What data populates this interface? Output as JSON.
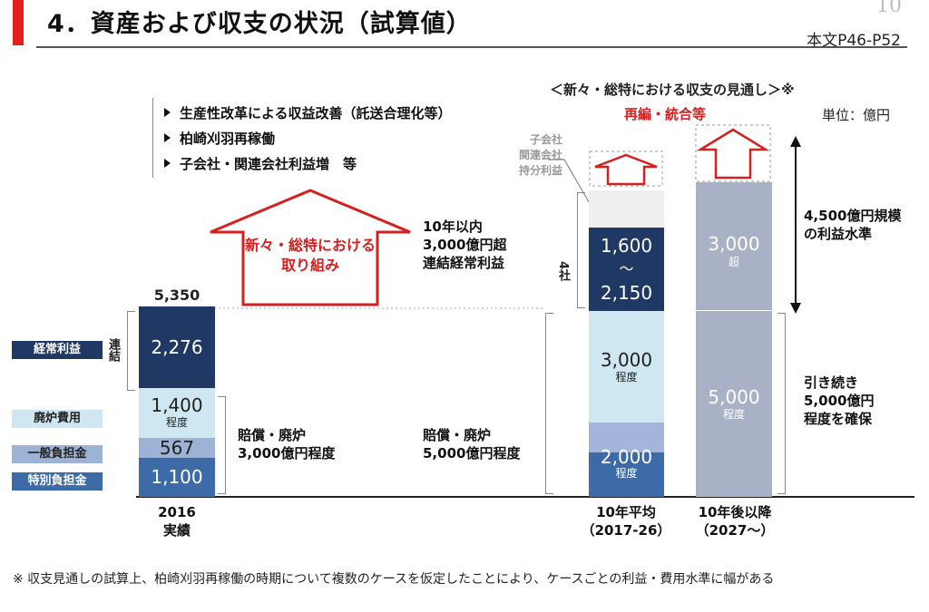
{
  "header": {
    "title": "4．資産および収支の状況（試算値）",
    "page_number": "10",
    "page_ref": "本文P46-P52"
  },
  "measures": {
    "items": [
      "生産性改革による収益改善（託送合理化等）",
      "柏崎刈羽再稼働",
      "子会社・関連会社利益増　等"
    ],
    "arrow_label_l1": "新々・総特における",
    "arrow_label_l2": "取り組み"
  },
  "outlook": {
    "heading": "＜新々・総特における収支の見通し＞※",
    "reorg_label": "再編・統合等",
    "unit": "単位：億円",
    "subsidiary_l1": "子会社",
    "subsidiary_l2": "関連会社",
    "subsidiary_l3": "持分利益"
  },
  "legend": {
    "ordinary_profit": "経常利益",
    "decommission": "廃炉費用",
    "general_burden": "一般負担金",
    "special_burden": "特別負担金",
    "consolidated": "連結",
    "four_companies": "4社"
  },
  "chart_data": {
    "type": "bar",
    "stacked": true,
    "unit": "億円",
    "categories": [
      "2016 実績",
      "10年平均（2017-26）",
      "10年後以降（2027～）"
    ],
    "bar_2016": {
      "total_label": "5,350",
      "segments": [
        {
          "name": "特別負担金",
          "value": 1100,
          "label": "1,100",
          "color": "#3d6ba8"
        },
        {
          "name": "一般負担金",
          "value": 567,
          "label": "567",
          "color": "#9db3d6"
        },
        {
          "name": "廃炉費用",
          "value": 1400,
          "label": "1,400",
          "sub": "程度",
          "color": "#cfe7f0"
        },
        {
          "name": "経常利益",
          "value": 2276,
          "label": "2,276",
          "color": "#1f3864"
        }
      ]
    },
    "bar_avg": {
      "segments": [
        {
          "name": "特別・一般負担金",
          "value": 2000,
          "label": "2,000",
          "sub": "程度",
          "color_top": "#a3b5da",
          "color_bottom": "#3d6ba8"
        },
        {
          "name": "廃炉費用",
          "value": 3000,
          "label": "3,000",
          "sub": "程度",
          "color": "#cfe7f0"
        },
        {
          "name": "経常利益(4社)",
          "value_low": 1600,
          "value_high": 2150,
          "label_top": "1,600",
          "label_mid": "～",
          "label_bottom": "2,150",
          "color": "#1f3864"
        },
        {
          "name": "子会社・関連会社持分利益",
          "color": "#efefef"
        }
      ]
    },
    "bar_future": {
      "color": "#a9b1c6",
      "segments": [
        {
          "name": "負担金・廃炉費用",
          "value": 5000,
          "label": "5,000",
          "sub": "程度"
        },
        {
          "name": "利益",
          "value": 3000,
          "label": "3,000",
          "sub": "超"
        }
      ]
    },
    "annotations": {
      "profit_2016_l1": "10年以内",
      "profit_2016_l2": "3,000億円超",
      "profit_2016_l3": "連結経常利益",
      "burden_2016_l1": "賠償・廃炉",
      "burden_2016_l2": "3,000億円程度",
      "burden_avg_l1": "賠償・廃炉",
      "burden_avg_l2": "5,000億円程度",
      "future_profit_l1": "4,500億円規模",
      "future_profit_l2": "の利益水準",
      "future_burden_l1": "引き続き",
      "future_burden_l2": "5,000億円",
      "future_burden_l3": "程度を確保"
    },
    "x_labels": {
      "c2016_l1": "2016",
      "c2016_l2": "実績",
      "avg_l1": "10年平均",
      "avg_l2": "（2017-26）",
      "future_l1": "10年後以降",
      "future_l2": "（2027～）"
    }
  },
  "footnote": "※ 収支見通しの試算上、柏崎刈羽再稼働の時期について複数のケースを仮定したことにより、ケースごとの利益・費用水準に幅がある"
}
